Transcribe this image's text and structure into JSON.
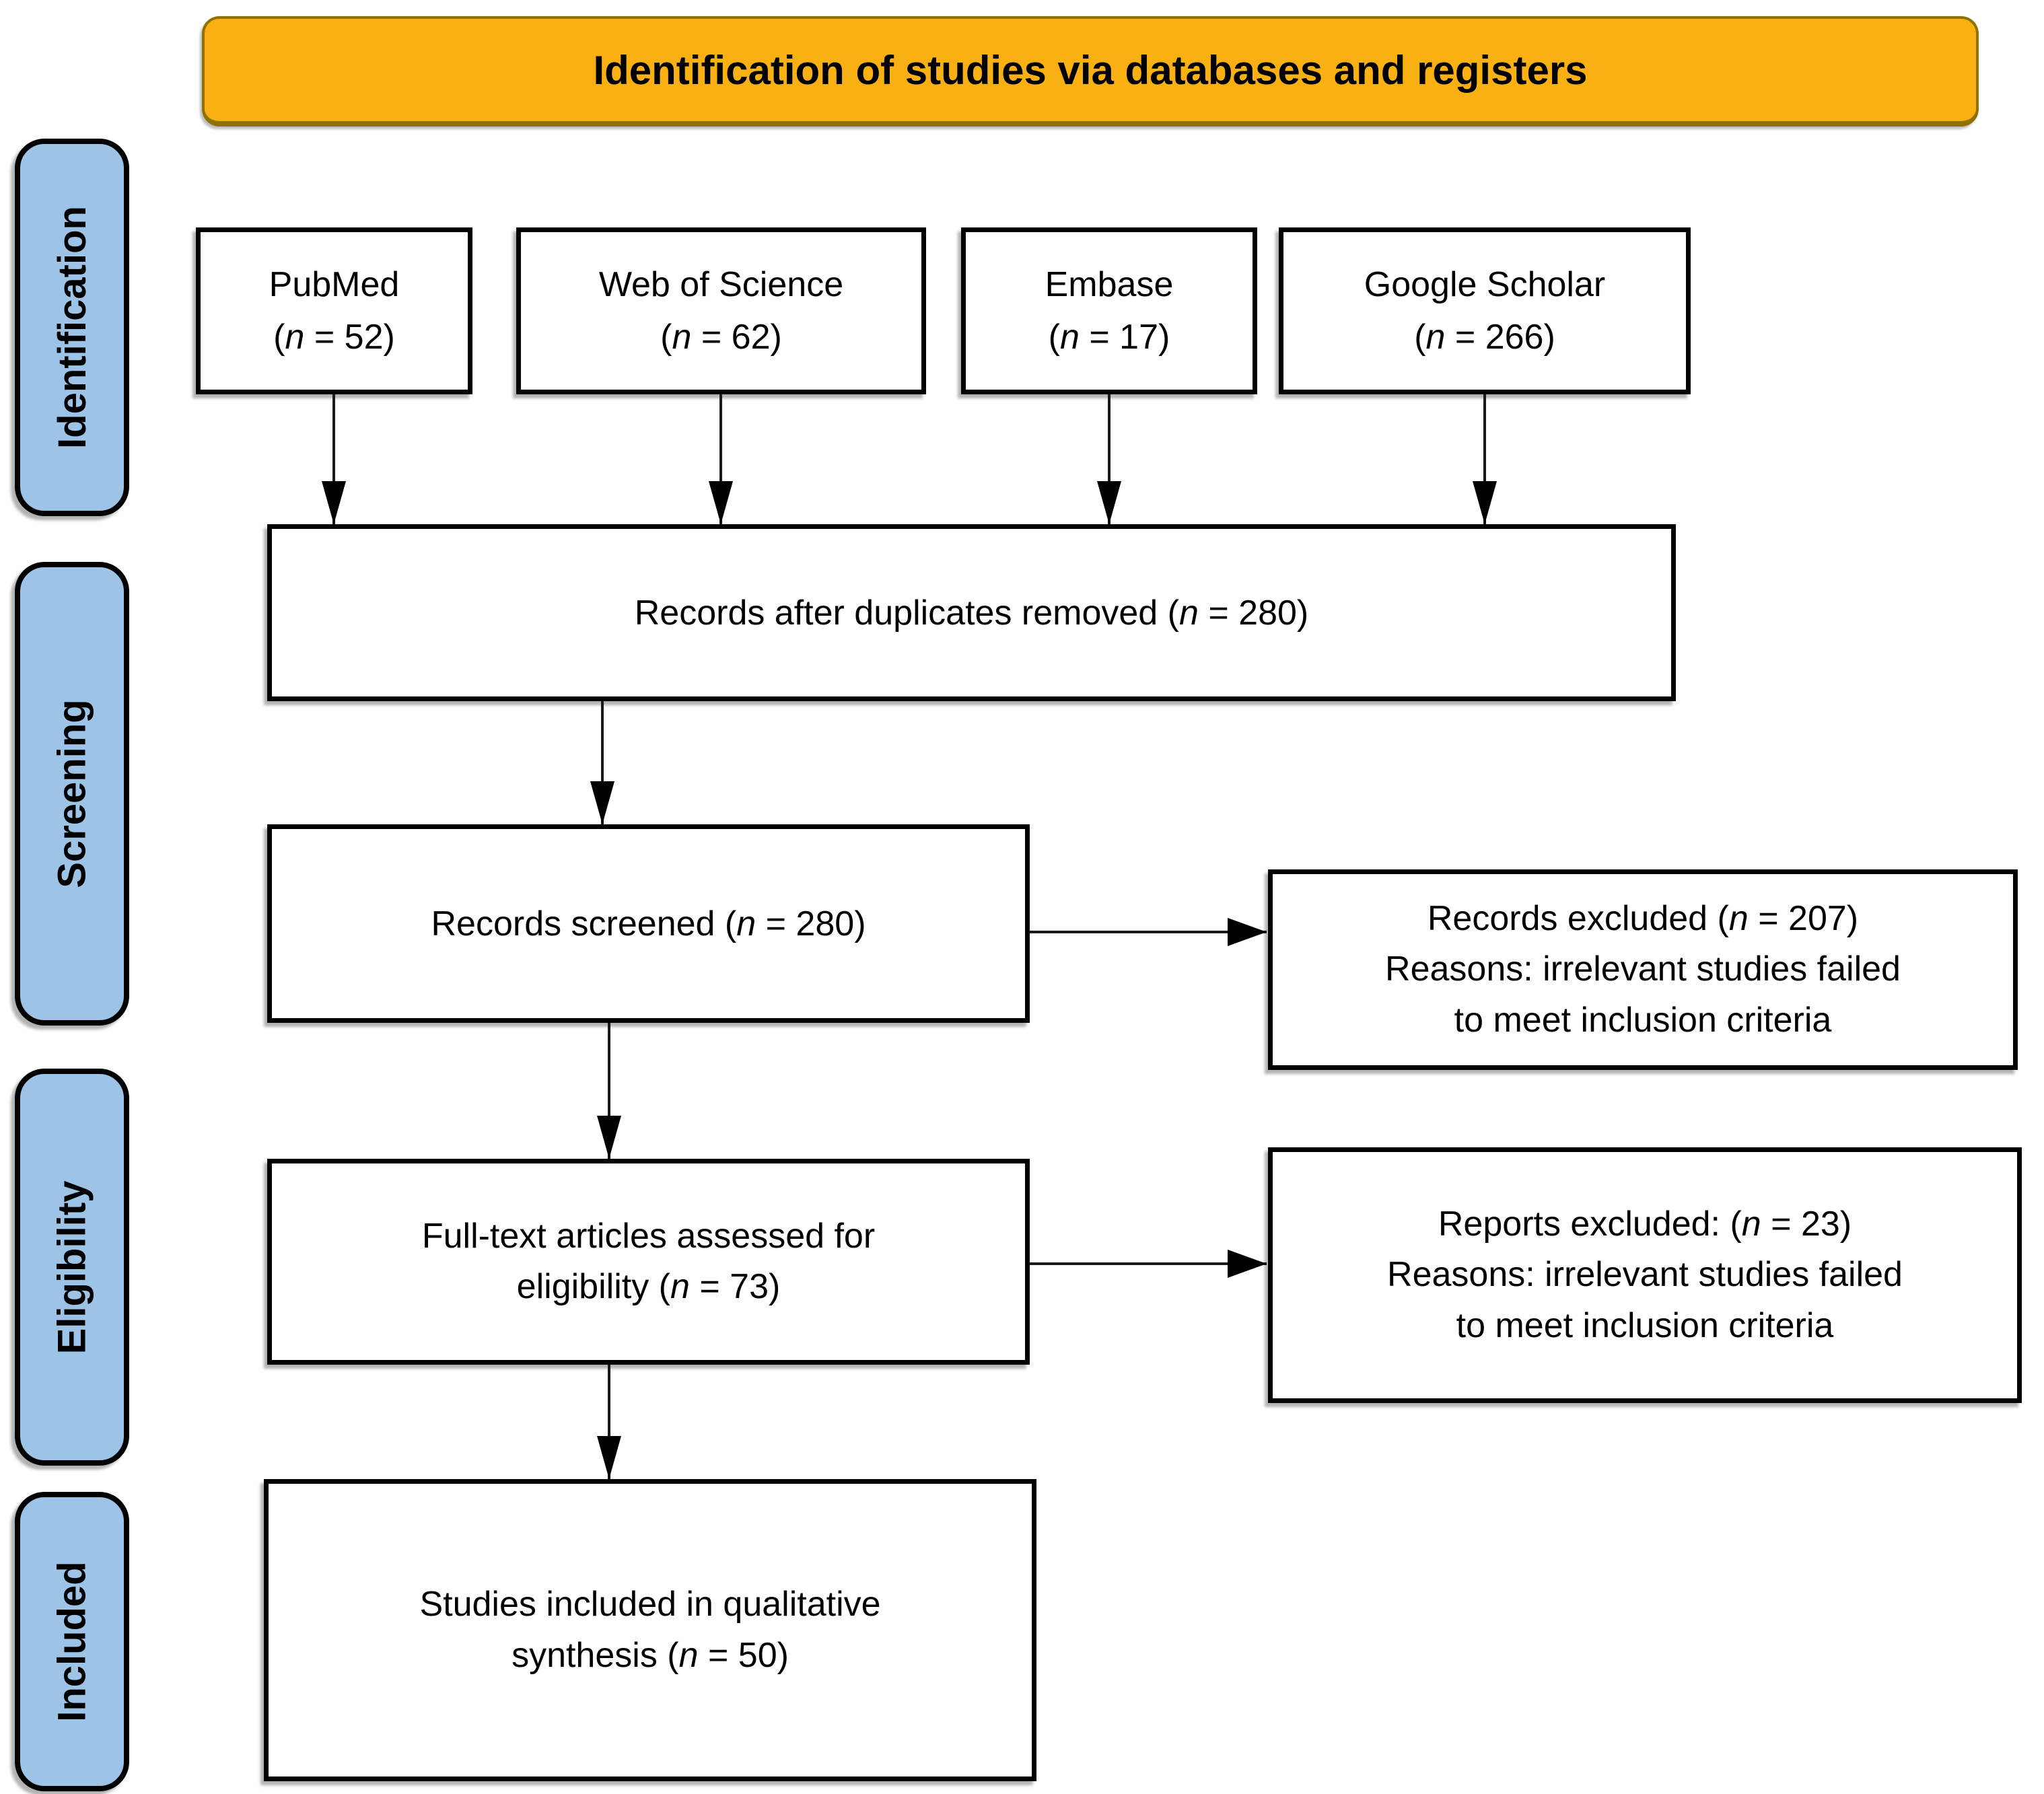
{
  "banner": {
    "title": "Identification of studies via databases and registers"
  },
  "stages": {
    "identification": {
      "label": "Identification"
    },
    "screening": {
      "label": "Screening"
    },
    "eligibility": {
      "label": "Eligibility"
    },
    "included": {
      "label": "Included"
    }
  },
  "sources": {
    "pubmed": {
      "label": "PubMed\n(n = 52)"
    },
    "web_of_science": {
      "label": "Web of Science\n(n = 62)"
    },
    "embase": {
      "label": "Embase\n(n = 17)"
    },
    "google_scholar": {
      "label": "Google Scholar\n(n = 266)"
    }
  },
  "flow": {
    "duplicates_removed": {
      "label": "Records after duplicates removed (n = 280)"
    },
    "records_screened": {
      "label": "Records screened (n = 280)"
    },
    "records_excluded": {
      "label": "Records excluded (n = 207)\nReasons: irrelevant studies failed\nto meet inclusion criteria"
    },
    "fulltext_assessed": {
      "label": "Full-text articles assessed for\neligibility (n = 73)"
    },
    "reports_excluded": {
      "label": "Reports excluded: (n = 23)\nReasons: irrelevant studies failed\nto meet inclusion criteria"
    },
    "studies_included": {
      "label": "Studies included in qualitative\nsynthesis (n = 50)"
    }
  },
  "colors": {
    "banner_bg": "#F9B013",
    "banner_border": "#8F7100",
    "stage_bg": "#9DC3E6",
    "box_bg": "#FFFFFF",
    "box_border": "#000000"
  }
}
